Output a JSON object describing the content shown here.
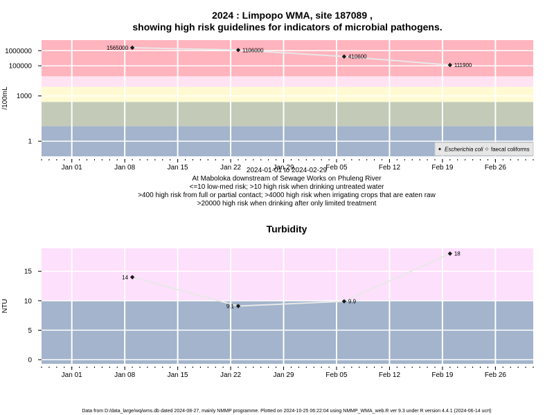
{
  "figure": {
    "title_line1": "2024 : Limpopo WMA, site 187089 ,",
    "title_line2": "showing high risk guidelines for indicators of microbial pathogens.",
    "footer": "Data from D:/data_large/wq/wms.db dated 2024-08-27, mainly NMMP programme. Plotted on 2024-10-25 06:22:04 using NMMP_WMA_web.R ver 9.3 under R version 4.4.1 (2024-06-14 ucrt)"
  },
  "chart_data": [
    {
      "type": "line",
      "title": "",
      "ylabel": "/100mL",
      "y_scale": "log",
      "x_range": [
        "2023-12-28",
        "2024-03-02"
      ],
      "y_range": [
        0.1,
        5000000
      ],
      "x_ticks": [
        "Jan 01",
        "Jan 08",
        "Jan 15",
        "Jan 22",
        "Jan 29",
        "Feb 05",
        "Feb 12",
        "Feb 19",
        "Feb 26"
      ],
      "x_tick_dates": [
        "2024-01-01",
        "2024-01-08",
        "2024-01-15",
        "2024-01-22",
        "2024-01-29",
        "2024-02-05",
        "2024-02-12",
        "2024-02-19",
        "2024-02-26"
      ],
      "y_ticks": [
        "1",
        "1000",
        "100000",
        "1000000"
      ],
      "y_tick_values": [
        1,
        1000,
        100000,
        1000000
      ],
      "bands": [
        {
          "from": 0.1,
          "to": 10,
          "color": "#a3b4cc"
        },
        {
          "from": 10,
          "to": 400,
          "color": "#c3cbb8"
        },
        {
          "from": 400,
          "to": 4000,
          "color": "#fffad2"
        },
        {
          "from": 4000,
          "to": 20000,
          "color": "#ffe3f2"
        },
        {
          "from": 20000,
          "to": 5000000,
          "color": "#ffb4be"
        }
      ],
      "series": [
        {
          "name": "Escherichia coli",
          "marker": "diamond",
          "x": [
            "2024-01-09",
            "2024-01-23",
            "2024-02-06",
            "2024-02-20"
          ],
          "y": [
            1565000,
            1106000,
            410600,
            111900
          ],
          "labels": [
            "1565000",
            "1106000",
            "410600",
            "111900"
          ],
          "label_side": [
            "left",
            "right",
            "right",
            "right"
          ]
        }
      ],
      "legend": {
        "position": "bottom-right",
        "entries": [
          "Escherichia coli",
          "faecal coliforms"
        ]
      },
      "annotations": [
        "2024-01-01 to 2024-02-29",
        "At Maboloka downstream of Sewage Works on Phuleng River",
        "<=10 low-med risk; >10 high risk when drinking untreated water",
        ">400 high risk from full or partial contact; >4000 high risk when irrigating crops that are eaten raw",
        ">20000 high risk when drinking after only limited treatment"
      ],
      "grid": true
    },
    {
      "type": "line",
      "title": "Turbidity",
      "ylabel": "NTU",
      "y_scale": "linear",
      "x_range": [
        "2023-12-28",
        "2024-03-02"
      ],
      "y_range": [
        -0.7,
        18.9
      ],
      "x_ticks": [
        "Jan 01",
        "Jan 08",
        "Jan 15",
        "Jan 22",
        "Jan 29",
        "Feb 05",
        "Feb 12",
        "Feb 19",
        "Feb 26"
      ],
      "x_tick_dates": [
        "2024-01-01",
        "2024-01-08",
        "2024-01-15",
        "2024-01-22",
        "2024-01-29",
        "2024-02-05",
        "2024-02-12",
        "2024-02-19",
        "2024-02-26"
      ],
      "y_ticks": [
        "0",
        "5",
        "10",
        "15"
      ],
      "y_tick_values": [
        0,
        5,
        10,
        15
      ],
      "bands": [
        {
          "from": -0.7,
          "to": 10,
          "color": "#a3b4cc"
        },
        {
          "from": 10,
          "to": 18.9,
          "color": "#fde0fc"
        }
      ],
      "series": [
        {
          "marker": "diamond",
          "x": [
            "2024-01-09",
            "2024-01-23",
            "2024-02-06",
            "2024-02-20"
          ],
          "y": [
            14,
            9.1,
            9.9,
            18
          ],
          "labels": [
            "14",
            "9.1",
            "9.9",
            "18"
          ],
          "label_side": [
            "left",
            "left",
            "right",
            "right"
          ]
        }
      ],
      "grid": true
    }
  ]
}
